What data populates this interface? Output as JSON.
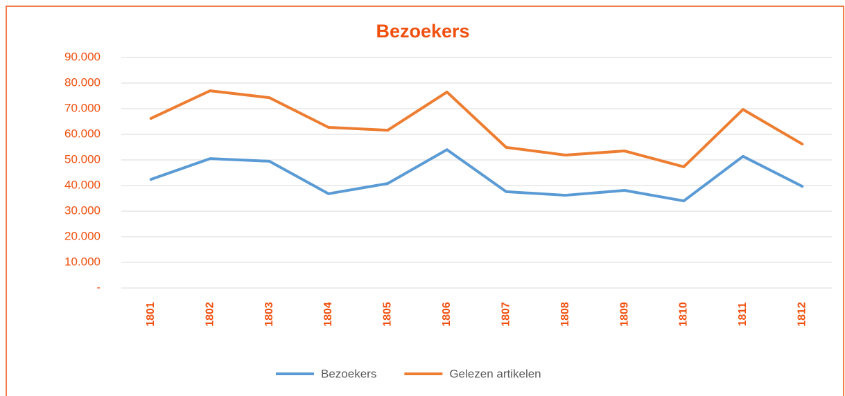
{
  "chart_data": {
    "type": "line",
    "title": "Bezoekers",
    "categories": [
      "1801",
      "1802",
      "1803",
      "1804",
      "1805",
      "1806",
      "1807",
      "1808",
      "1809",
      "1810",
      "1811",
      "1812"
    ],
    "series": [
      {
        "name": "Bezoekers",
        "color": "#5b9bd5",
        "values": [
          42400,
          50500,
          49500,
          36800,
          40800,
          54000,
          37600,
          36200,
          38100,
          34000,
          51400,
          39700
        ]
      },
      {
        "name": "Gelezen artikelen",
        "color": "#ed7d31",
        "values": [
          66200,
          77000,
          74300,
          62700,
          61600,
          76500,
          54900,
          51900,
          53500,
          47300,
          69700,
          56200
        ]
      }
    ],
    "ylim": [
      0,
      90000
    ],
    "yticks": [
      {
        "value": 0,
        "label": "-"
      },
      {
        "value": 10000,
        "label": "10.000"
      },
      {
        "value": 20000,
        "label": "20.000"
      },
      {
        "value": 30000,
        "label": "30.000"
      },
      {
        "value": 40000,
        "label": "40.000"
      },
      {
        "value": 50000,
        "label": "50.000"
      },
      {
        "value": 60000,
        "label": "60.000"
      },
      {
        "value": 70000,
        "label": "70.000"
      },
      {
        "value": 80000,
        "label": "80.000"
      },
      {
        "value": 90000,
        "label": "90.000"
      }
    ],
    "grid": true,
    "legend": "bottom"
  }
}
